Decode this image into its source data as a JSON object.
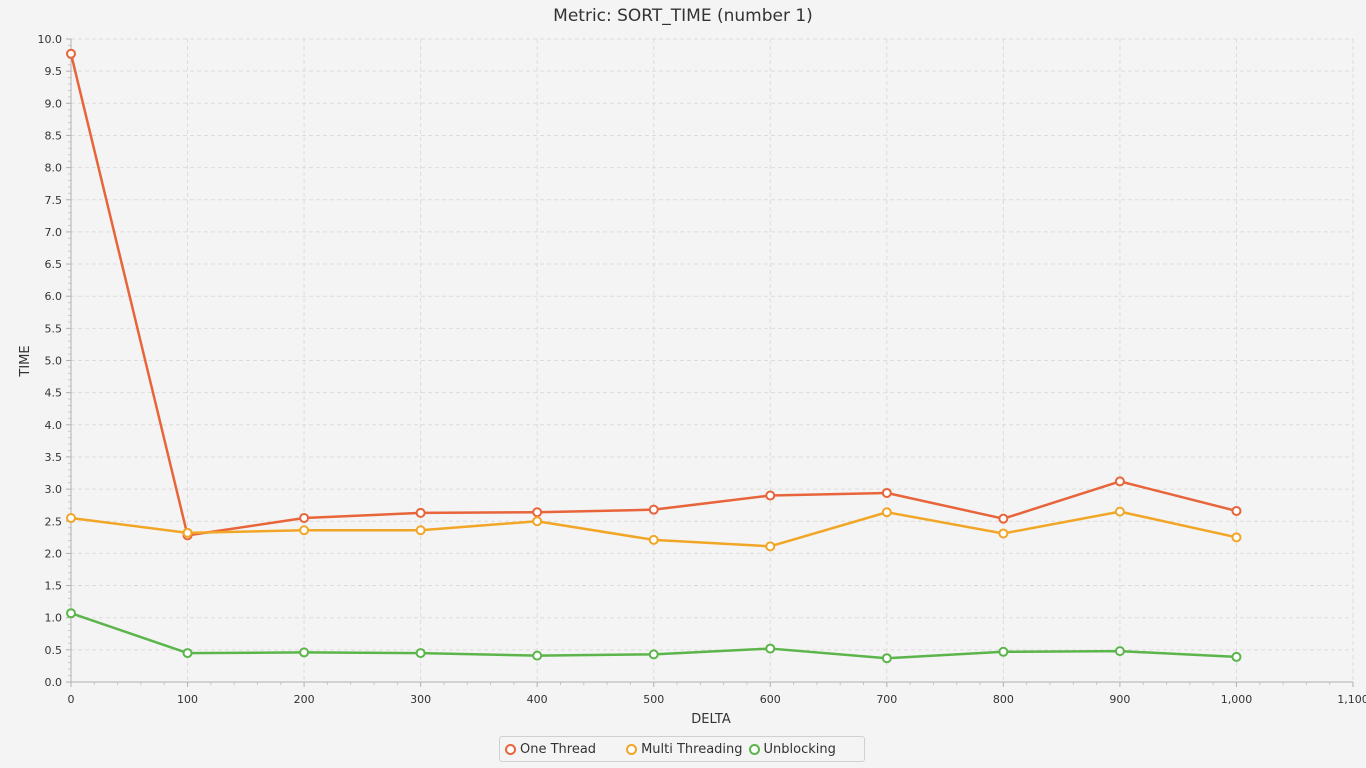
{
  "chart_data": {
    "type": "line",
    "title": "Metric: SORT_TIME (number 1)",
    "xlabel": "DELTA",
    "ylabel": "TIME",
    "xlim": [
      0,
      1100
    ],
    "ylim": [
      0,
      10
    ],
    "x_ticks": [
      "0",
      "100",
      "200",
      "300",
      "400",
      "500",
      "600",
      "700",
      "800",
      "900",
      "1,000",
      "1,100"
    ],
    "y_ticks": [
      "0.0",
      "0.5",
      "1.0",
      "1.5",
      "2.0",
      "2.5",
      "3.0",
      "3.5",
      "4.0",
      "4.5",
      "5.0",
      "5.5",
      "6.0",
      "6.5",
      "7.0",
      "7.5",
      "8.0",
      "8.5",
      "9.0",
      "9.5",
      "10.0"
    ],
    "grid": true,
    "legend_position": "bottom",
    "x": [
      0,
      100,
      200,
      300,
      400,
      500,
      600,
      700,
      800,
      900,
      1000
    ],
    "series": [
      {
        "name": "One Thread",
        "color": "#e8643a",
        "values": [
          9.77,
          2.28,
          2.55,
          2.63,
          2.64,
          2.68,
          2.9,
          2.94,
          2.54,
          3.12,
          2.66
        ]
      },
      {
        "name": "Multi Threading",
        "color": "#f2a627",
        "values": [
          2.55,
          2.32,
          2.36,
          2.36,
          2.5,
          2.21,
          2.11,
          2.64,
          2.31,
          2.65,
          2.25
        ]
      },
      {
        "name": "Unblocking",
        "color": "#5bb54a",
        "values": [
          1.07,
          0.45,
          0.46,
          0.45,
          0.41,
          0.43,
          0.52,
          0.37,
          0.47,
          0.48,
          0.39
        ]
      }
    ]
  }
}
